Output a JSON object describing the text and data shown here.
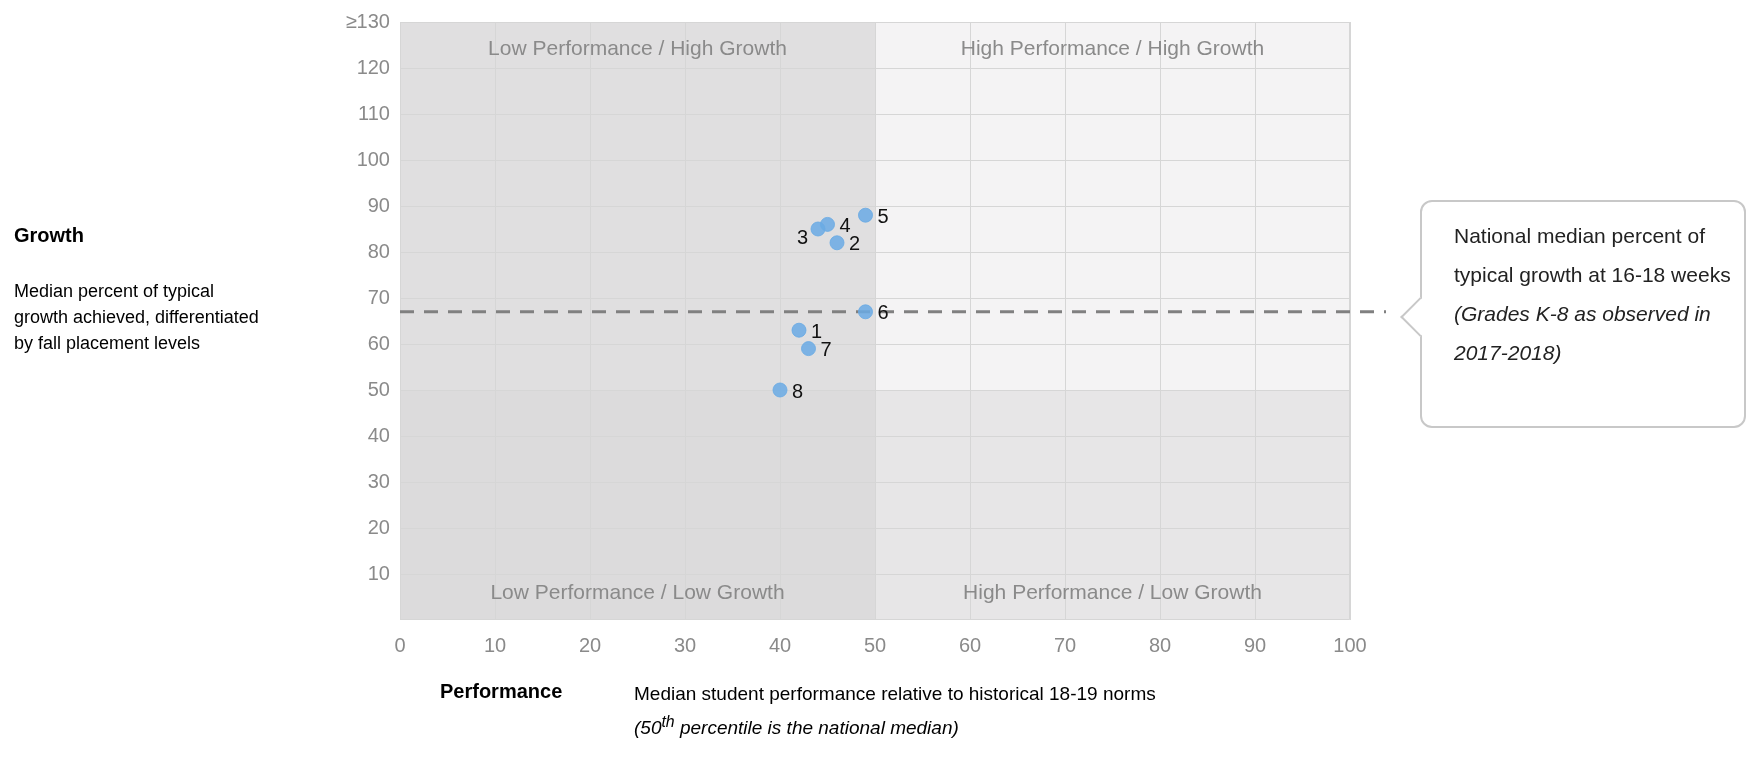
{
  "chart_data": {
    "type": "scatter",
    "xlabel": "Performance",
    "series": [
      {
        "name": "1",
        "color": "#6aaae4",
        "x": [
          42
        ],
        "values": [
          63
        ]
      },
      {
        "name": "2",
        "color": "#6aaae4",
        "x": [
          46
        ],
        "values": [
          82
        ]
      },
      {
        "name": "3",
        "color": "#6aaae4",
        "x": [
          44
        ],
        "values": [
          85
        ]
      },
      {
        "name": "4",
        "color": "#6aaae4",
        "x": [
          45
        ],
        "values": [
          86
        ]
      },
      {
        "name": "5",
        "color": "#6aaae4",
        "x": [
          49
        ],
        "values": [
          88
        ]
      },
      {
        "name": "6",
        "color": "#6aaae4",
        "x": [
          49
        ],
        "values": [
          67
        ]
      },
      {
        "name": "7",
        "color": "#6aaae4",
        "x": [
          43
        ],
        "values": [
          59
        ]
      },
      {
        "name": "8",
        "color": "#6aaae4",
        "x": [
          40
        ],
        "values": [
          50
        ]
      }
    ],
    "marker": "circle",
    "xlim": [
      0,
      100
    ],
    "xticks": [
      0,
      10,
      20,
      30,
      40,
      50,
      60,
      70,
      80,
      90,
      100
    ],
    "ylim": [
      0,
      130
    ],
    "yticks": [
      10,
      20,
      30,
      40,
      50,
      60,
      70,
      80,
      90,
      100,
      110,
      120,
      {
        "value": 130,
        "label": "≥130"
      }
    ],
    "grid": true,
    "legend": false,
    "ref_lines": [
      {
        "axis": "y",
        "value": 67,
        "color": "#808080",
        "line_style": "dashed"
      }
    ],
    "bands": [
      {
        "axis": "x",
        "from": 0,
        "to": 50,
        "color": "#c8c8c8"
      },
      {
        "axis": "y",
        "from": 0,
        "to": 50,
        "color": "#d8d8d8"
      }
    ],
    "annotations": [
      "Growth",
      "Median percent of typical growth achieved, differentiated by fall placement levels",
      "Median student performance relative to historical 18-19 norms (50$^{th}$ percentile is the national median)",
      "National median percent of typical growth at 16-18 weeks (Grades K-8 as observed in 2017-2018)",
      "Low Performance / High Growth",
      "High Performance / High Growth",
      "Low Performance / Low Growth",
      "High Performance / Low Growth"
    ]
  }
}
